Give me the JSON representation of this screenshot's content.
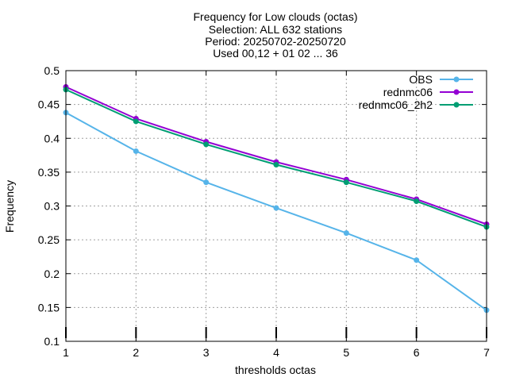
{
  "chart_data": {
    "type": "line",
    "title_lines": [
      "Frequency  for Low clouds (octas)",
      "Selection: ALL    632 stations",
      "Period: 20250702-20250720",
      "Used 00,12 + 01 02 ... 36"
    ],
    "xlabel": "thresholds octas",
    "ylabel": "Frequency",
    "xlim": [
      1,
      7
    ],
    "ylim": [
      0.1,
      0.5
    ],
    "x_ticks": [
      1,
      2,
      3,
      4,
      5,
      6,
      7
    ],
    "y_ticks": [
      "0.1",
      "0.15",
      "0.2",
      "0.25",
      "0.3",
      "0.35",
      "0.4",
      "0.45",
      "0.5"
    ],
    "grid": true,
    "legend_position": "top-right",
    "x": [
      1,
      2,
      3,
      4,
      5,
      6,
      7
    ],
    "series": [
      {
        "name": "OBS",
        "color": "#56b4e9",
        "values": [
          0.438,
          0.381,
          0.335,
          0.297,
          0.26,
          0.22,
          0.146
        ]
      },
      {
        "name": "rednmc06",
        "color": "#9400d3",
        "values": [
          0.476,
          0.429,
          0.395,
          0.365,
          0.339,
          0.31,
          0.273
        ]
      },
      {
        "name": "rednmc06_2h2",
        "color": "#009e73",
        "values": [
          0.472,
          0.425,
          0.391,
          0.361,
          0.335,
          0.307,
          0.269
        ]
      }
    ]
  }
}
